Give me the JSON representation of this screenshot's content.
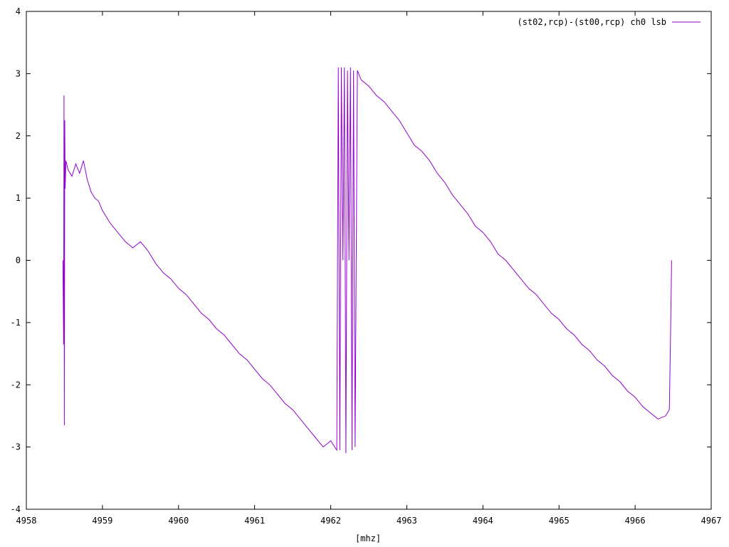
{
  "chart_data": {
    "type": "line",
    "title": "",
    "xlabel": "[mhz]",
    "ylabel": "",
    "xlim": [
      4958,
      4967
    ],
    "ylim": [
      -4,
      4
    ],
    "x_ticks": [
      4958,
      4959,
      4960,
      4961,
      4962,
      4963,
      4964,
      4965,
      4966,
      4967
    ],
    "y_ticks": [
      -4,
      -3,
      -2,
      -1,
      0,
      1,
      2,
      3,
      4
    ],
    "x_tick_labels": [
      "4958",
      "4959",
      "4960",
      "4961",
      "4962",
      "4963",
      "4964",
      "4965",
      "4966",
      "4967"
    ],
    "y_tick_labels": [
      "-4",
      "-3",
      "-2",
      "-1",
      "0",
      "1",
      "2",
      "3",
      "4"
    ],
    "grid": false,
    "legend_position": "top-right",
    "series": [
      {
        "name": "(st02,rcp)-(st00,rcp) ch0 lsb",
        "color": "#9400d3",
        "x": [
          4958.48,
          4958.49,
          4958.495,
          4958.5,
          4958.505,
          4958.51,
          4958.52,
          4958.55,
          4958.6,
          4958.65,
          4958.7,
          4958.75,
          4958.8,
          4958.85,
          4958.9,
          4958.95,
          4959.0,
          4959.1,
          4959.2,
          4959.3,
          4959.4,
          4959.5,
          4959.6,
          4959.7,
          4959.8,
          4959.9,
          4960.0,
          4960.1,
          4960.2,
          4960.3,
          4960.4,
          4960.5,
          4960.6,
          4960.7,
          4960.8,
          4960.9,
          4961.0,
          4961.1,
          4961.2,
          4961.3,
          4961.4,
          4961.5,
          4961.6,
          4961.7,
          4961.8,
          4961.9,
          4962.0,
          4962.08,
          4962.1,
          4962.12,
          4962.14,
          4962.16,
          4962.18,
          4962.2,
          4962.22,
          4962.24,
          4962.26,
          4962.28,
          4962.3,
          4962.32,
          4962.35,
          4962.4,
          4962.5,
          4962.6,
          4962.7,
          4962.8,
          4962.9,
          4963.0,
          4963.1,
          4963.2,
          4963.3,
          4963.4,
          4963.5,
          4963.6,
          4963.7,
          4963.8,
          4963.9,
          4964.0,
          4964.1,
          4964.2,
          4964.3,
          4964.4,
          4964.5,
          4964.6,
          4964.7,
          4964.8,
          4964.9,
          4965.0,
          4965.1,
          4965.2,
          4965.3,
          4965.4,
          4965.5,
          4965.6,
          4965.7,
          4965.8,
          4965.9,
          4966.0,
          4966.1,
          4966.2,
          4966.3,
          4966.4,
          4966.45,
          4966.47,
          4966.48
        ],
        "y": [
          0.0,
          -1.35,
          2.65,
          -2.65,
          2.25,
          1.15,
          1.6,
          1.45,
          1.35,
          1.55,
          1.4,
          1.6,
          1.3,
          1.1,
          1.0,
          0.95,
          0.8,
          0.6,
          0.45,
          0.3,
          0.2,
          0.3,
          0.15,
          -0.05,
          -0.2,
          -0.3,
          -0.45,
          -0.55,
          -0.7,
          -0.85,
          -0.95,
          -1.1,
          -1.2,
          -1.35,
          -1.5,
          -1.6,
          -1.75,
          -1.9,
          -2.0,
          -2.15,
          -2.3,
          -2.4,
          -2.55,
          -2.7,
          -2.85,
          -3.0,
          -2.9,
          -3.05,
          3.1,
          -3.05,
          3.1,
          0.0,
          3.1,
          -3.1,
          3.05,
          0.0,
          3.1,
          -3.05,
          3.05,
          -3.0,
          3.05,
          2.9,
          2.8,
          2.65,
          2.55,
          2.4,
          2.25,
          2.05,
          1.85,
          1.75,
          1.6,
          1.4,
          1.25,
          1.05,
          0.9,
          0.75,
          0.55,
          0.45,
          0.3,
          0.1,
          0.0,
          -0.15,
          -0.3,
          -0.45,
          -0.55,
          -0.7,
          -0.85,
          -0.95,
          -1.1,
          -1.2,
          -1.35,
          -1.45,
          -1.6,
          -1.7,
          -1.85,
          -1.95,
          -2.1,
          -2.2,
          -2.35,
          -2.45,
          -2.55,
          -2.5,
          -2.4,
          -0.9,
          0.0
        ]
      }
    ]
  }
}
